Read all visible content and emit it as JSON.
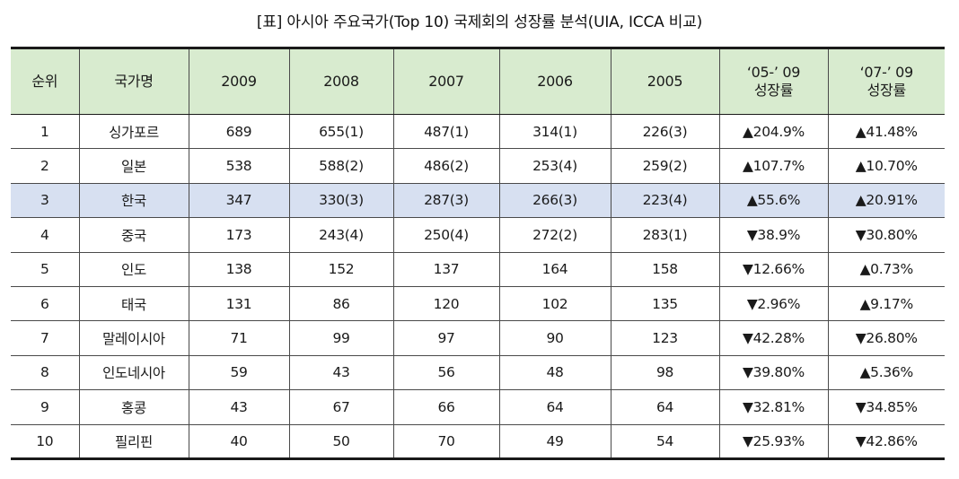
{
  "title": "[표] 아시아 주요국가(Top 10) 국제회의 성장률 분석(UIA, ICCA 비교)",
  "headers": {
    "rank": "순위",
    "country": "국가명",
    "y2009": "2009",
    "y2008": "2008",
    "y2007": "2007",
    "y2006": "2006",
    "y2005": "2005",
    "g0509_line1": "‘05-’ 09",
    "g0509_line2": "성장률",
    "g0709_line1": "‘07-’ 09",
    "g0709_line2": "성장률"
  },
  "rows": [
    {
      "rank": "1",
      "country": "싱가포르",
      "y2009": "689",
      "y2008": "655(1)",
      "y2007": "487(1)",
      "y2006": "314(1)",
      "y2005": "226(3)",
      "g0509": "▲204.9%",
      "g0709": "▲41.48%",
      "highlight": false
    },
    {
      "rank": "2",
      "country": "일본",
      "y2009": "538",
      "y2008": "588(2)",
      "y2007": "486(2)",
      "y2006": "253(4)",
      "y2005": "259(2)",
      "g0509": "▲107.7%",
      "g0709": "▲10.70%",
      "highlight": false
    },
    {
      "rank": "3",
      "country": "한국",
      "y2009": "347",
      "y2008": "330(3)",
      "y2007": "287(3)",
      "y2006": "266(3)",
      "y2005": "223(4)",
      "g0509": "▲55.6%",
      "g0709": "▲20.91%",
      "highlight": true
    },
    {
      "rank": "4",
      "country": "중국",
      "y2009": "173",
      "y2008": "243(4)",
      "y2007": "250(4)",
      "y2006": "272(2)",
      "y2005": "283(1)",
      "g0509": "▼38.9%",
      "g0709": "▼30.80%",
      "highlight": false
    },
    {
      "rank": "5",
      "country": "인도",
      "y2009": "138",
      "y2008": "152",
      "y2007": "137",
      "y2006": "164",
      "y2005": "158",
      "g0509": "▼12.66%",
      "g0709": "▲0.73%",
      "highlight": false
    },
    {
      "rank": "6",
      "country": "태국",
      "y2009": "131",
      "y2008": "86",
      "y2007": "120",
      "y2006": "102",
      "y2005": "135",
      "g0509": "▼2.96%",
      "g0709": "▲9.17%",
      "highlight": false
    },
    {
      "rank": "7",
      "country": "말레이시아",
      "y2009": "71",
      "y2008": "99",
      "y2007": "97",
      "y2006": "90",
      "y2005": "123",
      "g0509": "▼42.28%",
      "g0709": "▼26.80%",
      "highlight": false
    },
    {
      "rank": "8",
      "country": "인도네시아",
      "y2009": "59",
      "y2008": "43",
      "y2007": "56",
      "y2006": "48",
      "y2005": "98",
      "g0509": "▼39.80%",
      "g0709": "▲5.36%",
      "highlight": false
    },
    {
      "rank": "9",
      "country": "홍콩",
      "y2009": "43",
      "y2008": "67",
      "y2007": "66",
      "y2006": "64",
      "y2005": "64",
      "g0509": "▼32.81%",
      "g0709": "▼34.85%",
      "highlight": false
    },
    {
      "rank": "10",
      "country": "필리핀",
      "y2009": "40",
      "y2008": "50",
      "y2007": "70",
      "y2006": "49",
      "y2005": "54",
      "g0509": "▼25.93%",
      "g0709": "▼42.86%",
      "highlight": false
    }
  ],
  "colors": {
    "header_bg": "#d8ebcf",
    "highlight_bg": "#d7e0f1",
    "border": "#4a4a4a"
  }
}
